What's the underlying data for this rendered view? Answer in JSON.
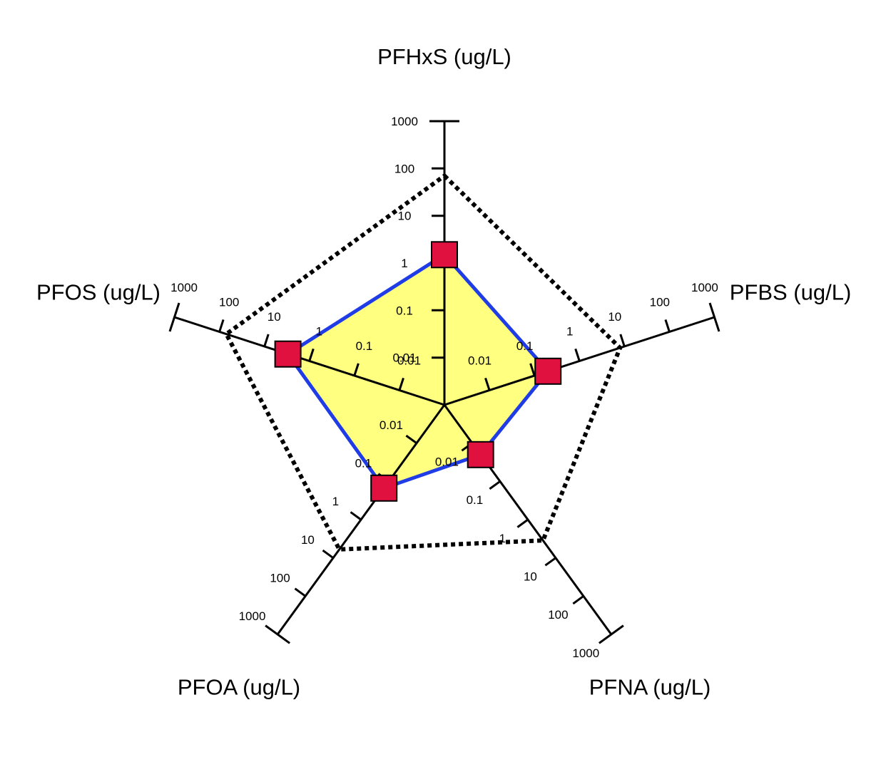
{
  "chart_data": {
    "type": "radar",
    "scale": "log10",
    "axis_range": [
      0.001,
      1000
    ],
    "tick_labels": [
      "0.01",
      "0.1",
      "1",
      "10",
      "100",
      "1000"
    ],
    "axes": [
      {
        "label": "PFHxS (ug/L)"
      },
      {
        "label": "PFBS (ug/L)"
      },
      {
        "label": "PFNA (ug/L)"
      },
      {
        "label": "PFOA (ug/L)"
      },
      {
        "label": "PFOS (ug/L)"
      }
    ],
    "series": [
      {
        "style": "markers-with-filled-polygon",
        "values": [
          1.5,
          0.2,
          0.02,
          0.15,
          3
        ]
      },
      {
        "style": "dotted-polygon",
        "values": [
          70,
          8,
          3.5,
          6,
          70
        ]
      }
    ],
    "colors": {
      "fill": "#ffff80",
      "line": "#1f3ce6",
      "marker": "#e0103f",
      "axis": "#000000"
    }
  }
}
